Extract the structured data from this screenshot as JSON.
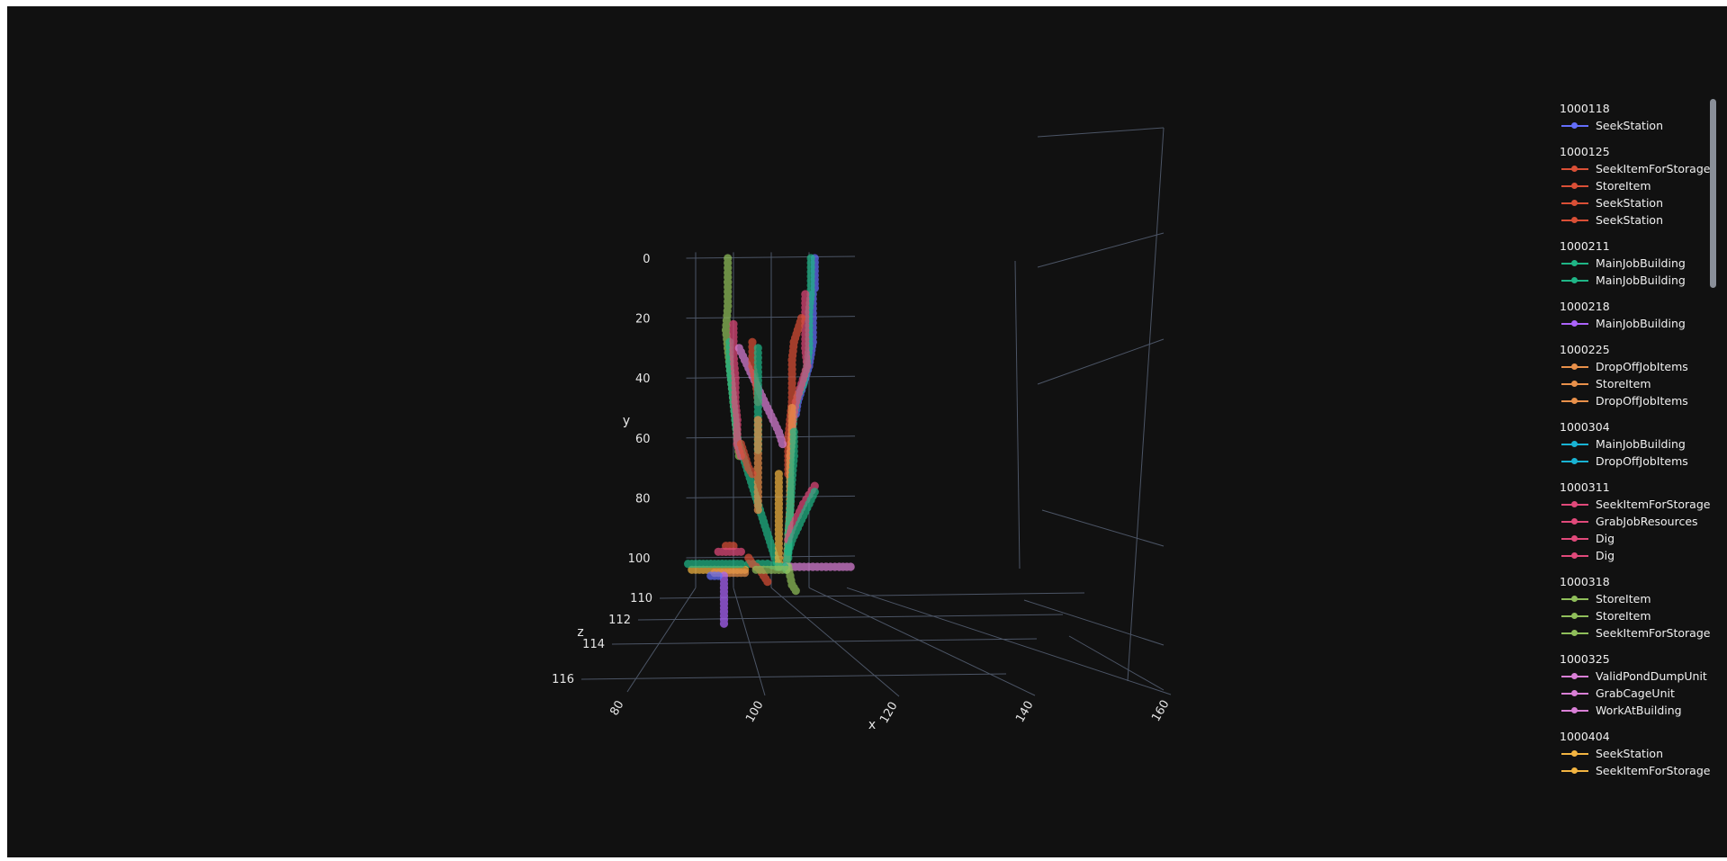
{
  "chart_data": {
    "type": "scatter3d",
    "axes": {
      "x": {
        "title": "x",
        "ticks": [
          "80",
          "100",
          "120",
          "140",
          "160"
        ],
        "range": [
          75,
          165
        ]
      },
      "y": {
        "title": "y",
        "ticks": [
          "0",
          "20",
          "40",
          "60",
          "80",
          "100"
        ],
        "range": [
          0,
          110
        ]
      },
      "z": {
        "title": "z",
        "ticks": [
          "110",
          "112",
          "114",
          "116"
        ],
        "range": [
          110,
          116
        ]
      }
    },
    "grid": true,
    "legend_position": "right",
    "groups": [
      {
        "title": "1000118",
        "series": [
          {
            "name": "SeekStation",
            "color": "#636efa"
          }
        ]
      },
      {
        "title": "1000125",
        "series": [
          {
            "name": "SeekItemForStorage",
            "color": "#d94f36"
          },
          {
            "name": "StoreItem",
            "color": "#d94f36"
          },
          {
            "name": "SeekStation",
            "color": "#d94f36"
          },
          {
            "name": "SeekStation",
            "color": "#d94f36"
          }
        ]
      },
      {
        "title": "1000211",
        "series": [
          {
            "name": "MainJobBuilding",
            "color": "#1fb586"
          },
          {
            "name": "MainJobBuilding",
            "color": "#1fb586"
          }
        ]
      },
      {
        "title": "1000218",
        "series": [
          {
            "name": "MainJobBuilding",
            "color": "#ab63fa"
          }
        ]
      },
      {
        "title": "1000225",
        "series": [
          {
            "name": "DropOffJobItems",
            "color": "#e8904a"
          },
          {
            "name": "StoreItem",
            "color": "#e8904a"
          },
          {
            "name": "DropOffJobItems",
            "color": "#e8904a"
          }
        ]
      },
      {
        "title": "1000304",
        "series": [
          {
            "name": "MainJobBuilding",
            "color": "#19b3d3"
          },
          {
            "name": "DropOffJobItems",
            "color": "#19b3d3"
          }
        ]
      },
      {
        "title": "1000311",
        "series": [
          {
            "name": "SeekItemForStorage",
            "color": "#e0497a"
          },
          {
            "name": "GrabJobResources",
            "color": "#e0497a"
          },
          {
            "name": "Dig",
            "color": "#e0497a"
          },
          {
            "name": "Dig",
            "color": "#e0497a"
          }
        ]
      },
      {
        "title": "1000318",
        "series": [
          {
            "name": "StoreItem",
            "color": "#8fbe5a"
          },
          {
            "name": "StoreItem",
            "color": "#8fbe5a"
          },
          {
            "name": "SeekItemForStorage",
            "color": "#8fbe5a"
          }
        ]
      },
      {
        "title": "1000325",
        "series": [
          {
            "name": "ValidPondDumpUnit",
            "color": "#d97fd6"
          },
          {
            "name": "GrabCageUnit",
            "color": "#d97fd6"
          },
          {
            "name": "WorkAtBuilding",
            "color": "#d97fd6"
          }
        ]
      },
      {
        "title": "1000404",
        "series": [
          {
            "name": "SeekStation",
            "color": "#f2b441"
          },
          {
            "name": "SeekItemForStorage",
            "color": "#f2b441"
          }
        ]
      }
    ],
    "trajectories": [
      {
        "color": "#636efa",
        "z": 110,
        "points": [
          [
            143,
            0
          ],
          [
            143,
            10
          ],
          [
            142,
            12
          ],
          [
            142,
            20
          ],
          [
            142,
            28
          ],
          [
            141,
            32
          ],
          [
            140,
            36
          ],
          [
            138,
            40
          ],
          [
            136,
            44
          ],
          [
            134,
            48
          ],
          [
            133,
            52
          ]
        ]
      },
      {
        "color": "#1fb586",
        "z": 110,
        "points": [
          [
            141,
            0
          ],
          [
            141,
            12
          ],
          [
            140,
            18
          ],
          [
            140,
            30
          ],
          [
            139,
            36
          ],
          [
            137,
            42
          ],
          [
            134,
            46
          ],
          [
            132,
            52
          ],
          [
            131,
            60
          ],
          [
            130,
            70
          ],
          [
            130,
            84
          ],
          [
            129,
            92
          ],
          [
            129,
            100
          ]
        ]
      },
      {
        "color": "#e0497a",
        "z": 110,
        "points": [
          [
            138,
            12
          ],
          [
            138,
            30
          ],
          [
            139,
            36
          ],
          [
            136,
            42
          ],
          [
            133,
            48
          ],
          [
            131,
            56
          ],
          [
            130,
            66
          ]
        ]
      },
      {
        "color": "#d94f36",
        "z": 110,
        "points": [
          [
            136,
            20
          ],
          [
            134,
            24
          ],
          [
            132,
            28
          ],
          [
            131,
            34
          ],
          [
            131,
            48
          ],
          [
            130,
            54
          ],
          [
            129,
            60
          ],
          [
            129,
            72
          ]
        ]
      },
      {
        "color": "#e8904a",
        "z": 110,
        "points": [
          [
            131,
            50
          ],
          [
            131,
            60
          ],
          [
            130,
            66
          ],
          [
            130,
            82
          ],
          [
            129,
            94
          ],
          [
            128,
            102
          ]
        ]
      },
      {
        "color": "#1fb586",
        "z": 110,
        "points": [
          [
            132,
            58
          ],
          [
            132,
            66
          ],
          [
            131,
            74
          ],
          [
            130,
            84
          ],
          [
            129,
            96
          ],
          [
            128,
            104
          ]
        ]
      },
      {
        "color": "#e0497a",
        "z": 110,
        "points": [
          [
            143,
            76
          ],
          [
            140,
            79
          ],
          [
            137,
            82
          ],
          [
            134,
            86
          ],
          [
            131,
            90
          ],
          [
            129,
            94
          ]
        ]
      },
      {
        "color": "#1fb586",
        "z": 110,
        "points": [
          [
            143,
            78
          ],
          [
            140,
            82
          ],
          [
            137,
            86
          ],
          [
            134,
            90
          ],
          [
            131,
            94
          ],
          [
            129,
            98
          ]
        ]
      },
      {
        "color": "#d97fd6",
        "z": 110,
        "points": [
          [
            128,
            103
          ],
          [
            135,
            103
          ],
          [
            142,
            103
          ],
          [
            149,
            103
          ],
          [
            156,
            103
          ],
          [
            162,
            103
          ]
        ]
      },
      {
        "color": "#8fbe5a",
        "z": 110,
        "points": [
          [
            129,
            103
          ],
          [
            130,
            106
          ],
          [
            131,
            109
          ],
          [
            133,
            111
          ]
        ]
      },
      {
        "color": "#8fbe5a",
        "z": 110,
        "points": [
          [
            97,
            0
          ],
          [
            97,
            8
          ],
          [
            97,
            16
          ],
          [
            96,
            24
          ],
          [
            97,
            30
          ],
          [
            98,
            36
          ],
          [
            99,
            42
          ],
          [
            100,
            48
          ],
          [
            101,
            54
          ],
          [
            102,
            60
          ],
          [
            103,
            66
          ]
        ]
      },
      {
        "color": "#1fb586",
        "z": 110,
        "points": [
          [
            98,
            28
          ],
          [
            98,
            36
          ],
          [
            99,
            42
          ],
          [
            100,
            48
          ],
          [
            101,
            54
          ],
          [
            102,
            60
          ],
          [
            104,
            64
          ],
          [
            106,
            68
          ],
          [
            108,
            72
          ],
          [
            110,
            76
          ],
          [
            112,
            80
          ],
          [
            114,
            84
          ],
          [
            116,
            88
          ],
          [
            118,
            92
          ],
          [
            120,
            96
          ],
          [
            122,
            100
          ],
          [
            124,
            103
          ]
        ]
      },
      {
        "color": "#e0497a",
        "z": 110,
        "points": [
          [
            100,
            22
          ],
          [
            100,
            32
          ],
          [
            101,
            40
          ],
          [
            101,
            48
          ],
          [
            102,
            54
          ],
          [
            102,
            62
          ],
          [
            104,
            66
          ]
        ]
      },
      {
        "color": "#d97fd6",
        "z": 110,
        "points": [
          [
            103,
            30
          ],
          [
            106,
            34
          ],
          [
            109,
            38
          ],
          [
            112,
            42
          ],
          [
            115,
            46
          ],
          [
            118,
            50
          ],
          [
            121,
            54
          ],
          [
            124,
            58
          ],
          [
            126,
            62
          ]
        ]
      },
      {
        "color": "#d94f36",
        "z": 110,
        "points": [
          [
            110,
            28
          ],
          [
            110,
            36
          ],
          [
            112,
            42
          ],
          [
            113,
            48
          ]
        ]
      },
      {
        "color": "#1fb586",
        "z": 110,
        "points": [
          [
            113,
            30
          ],
          [
            113,
            38
          ],
          [
            113,
            48
          ],
          [
            113,
            56
          ],
          [
            113,
            64
          ]
        ]
      },
      {
        "color": "#e8904a",
        "z": 110,
        "points": [
          [
            113,
            54
          ],
          [
            113,
            62
          ],
          [
            113,
            70
          ],
          [
            113,
            78
          ],
          [
            113,
            84
          ]
        ]
      },
      {
        "color": "#d94f36",
        "z": 110,
        "points": [
          [
            104,
            62
          ],
          [
            106,
            66
          ],
          [
            108,
            70
          ],
          [
            110,
            72
          ]
        ]
      },
      {
        "color": "#f2b441",
        "z": 110,
        "points": [
          [
            124,
            72
          ],
          [
            124,
            82
          ],
          [
            124,
            92
          ],
          [
            124,
            100
          ],
          [
            124,
            103
          ]
        ]
      },
      {
        "color": "#1fb586",
        "z": 110,
        "points": [
          [
            108,
            102
          ],
          [
            113,
            102
          ],
          [
            118,
            102
          ],
          [
            123,
            103
          ],
          [
            127,
            103
          ]
        ]
      },
      {
        "color": "#f2b441",
        "z": 110,
        "points": [
          [
            78,
            104
          ],
          [
            84,
            104
          ],
          [
            90,
            104
          ],
          [
            96,
            104
          ],
          [
            102,
            104
          ],
          [
            106,
            104
          ]
        ]
      },
      {
        "color": "#1fb586",
        "z": 110,
        "points": [
          [
            76,
            102
          ],
          [
            82,
            102
          ],
          [
            88,
            102
          ],
          [
            94,
            102
          ],
          [
            100,
            102
          ],
          [
            104,
            102
          ]
        ]
      },
      {
        "color": "#e8904a",
        "z": 110,
        "points": [
          [
            90,
            105
          ],
          [
            94,
            105
          ],
          [
            98,
            105
          ],
          [
            102,
            105
          ],
          [
            106,
            105
          ]
        ]
      },
      {
        "color": "#d94f36",
        "z": 110,
        "points": [
          [
            96,
            96
          ],
          [
            98,
            96
          ],
          [
            100,
            96
          ]
        ]
      },
      {
        "color": "#e0497a",
        "z": 110,
        "points": [
          [
            92,
            98
          ],
          [
            96,
            98
          ],
          [
            100,
            98
          ],
          [
            104,
            98
          ]
        ]
      },
      {
        "color": "#d94f36",
        "z": 110,
        "points": [
          [
            108,
            100
          ],
          [
            110,
            102
          ],
          [
            114,
            104
          ],
          [
            116,
            106
          ],
          [
            118,
            108
          ]
        ]
      },
      {
        "color": "#8fbe5a",
        "z": 110,
        "points": [
          [
            112,
            104
          ],
          [
            116,
            104
          ],
          [
            120,
            104
          ],
          [
            124,
            104
          ],
          [
            128,
            104
          ]
        ]
      },
      {
        "color": "#ab63fa",
        "z": 110,
        "points": [
          [
            95,
            106
          ],
          [
            95,
            110
          ],
          [
            95,
            114
          ],
          [
            95,
            118
          ],
          [
            95,
            122
          ]
        ]
      },
      {
        "color": "#636efa",
        "z": 110,
        "points": [
          [
            88,
            106
          ],
          [
            90,
            106
          ],
          [
            92,
            106
          ]
        ]
      }
    ]
  }
}
